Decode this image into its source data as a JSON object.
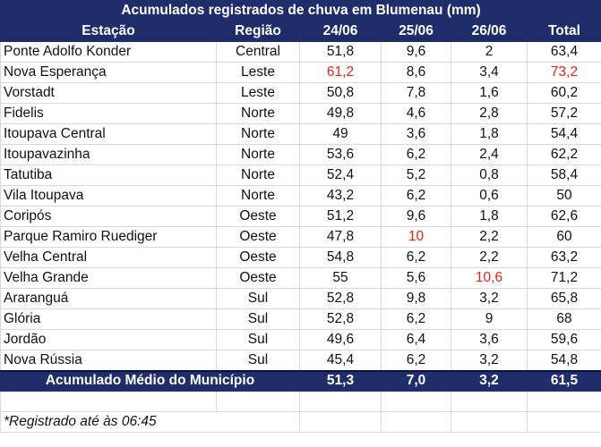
{
  "title": "Acumulados registrados de chuva em Blumenau (mm)",
  "headers": [
    "Estação",
    "Região",
    "24/06",
    "25/06",
    "26/06",
    "Total"
  ],
  "rows": [
    {
      "station": "Ponte Adolfo Konder",
      "region": "Central",
      "d1": "51,8",
      "d2": "9,6",
      "d3": "2",
      "total": "63,4",
      "highlight": []
    },
    {
      "station": "Nova Esperança",
      "region": "Leste",
      "d1": "61,2",
      "d2": "8,6",
      "d3": "3,4",
      "total": "73,2",
      "highlight": [
        "d1",
        "total"
      ]
    },
    {
      "station": "Vorstadt",
      "region": "Leste",
      "d1": "50,8",
      "d2": "7,8",
      "d3": "1,6",
      "total": "60,2",
      "highlight": []
    },
    {
      "station": "Fidelis",
      "region": "Norte",
      "d1": "49,8",
      "d2": "4,6",
      "d3": "2,8",
      "total": "57,2",
      "highlight": []
    },
    {
      "station": "Itoupava Central",
      "region": "Norte",
      "d1": "49",
      "d2": "3,6",
      "d3": "1,8",
      "total": "54,4",
      "highlight": []
    },
    {
      "station": "Itoupavazinha",
      "region": "Norte",
      "d1": "53,6",
      "d2": "6,2",
      "d3": "2,4",
      "total": "62,2",
      "highlight": []
    },
    {
      "station": "Tatutiba",
      "region": "Norte",
      "d1": "52,4",
      "d2": "5,2",
      "d3": "0,8",
      "total": "58,4",
      "highlight": []
    },
    {
      "station": "Vila Itoupava",
      "region": "Norte",
      "d1": "43,2",
      "d2": "6,2",
      "d3": "0,6",
      "total": "50",
      "highlight": []
    },
    {
      "station": "Coripós",
      "region": "Oeste",
      "d1": "51,2",
      "d2": "9,6",
      "d3": "1,8",
      "total": "62,6",
      "highlight": []
    },
    {
      "station": "Parque Ramiro Ruediger",
      "region": "Oeste",
      "d1": "47,8",
      "d2": "10",
      "d3": "2,2",
      "total": "60",
      "highlight": [
        "d2"
      ]
    },
    {
      "station": "Velha Central",
      "region": "Oeste",
      "d1": "54,8",
      "d2": "6,2",
      "d3": "2,2",
      "total": "63,2",
      "highlight": []
    },
    {
      "station": "Velha Grande",
      "region": "Oeste",
      "d1": "55",
      "d2": "5,6",
      "d3": "10,6",
      "total": "71,2",
      "highlight": [
        "d3"
      ]
    },
    {
      "station": "Araranguá",
      "region": "Sul",
      "d1": "52,8",
      "d2": "9,8",
      "d3": "3,2",
      "total": "65,8",
      "highlight": []
    },
    {
      "station": "Glória",
      "region": "Sul",
      "d1": "52,8",
      "d2": "6,2",
      "d3": "9",
      "total": "68",
      "highlight": []
    },
    {
      "station": "Jordão",
      "region": "Sul",
      "d1": "49,6",
      "d2": "6,4",
      "d3": "3,6",
      "total": "59,6",
      "highlight": []
    },
    {
      "station": "Nova Rússia",
      "region": "Sul",
      "d1": "45,4",
      "d2": "6,2",
      "d3": "3,2",
      "total": "54,8",
      "highlight": []
    }
  ],
  "footer": {
    "label": "Acumulado Médio do Município",
    "d1": "51,3",
    "d2": "7,0",
    "d3": "3,2",
    "total": "61,5"
  },
  "note": "*Registrado até às 06:45",
  "colors": {
    "header_bg": "#1f2d6b",
    "highlight_text": "#e0241b"
  }
}
